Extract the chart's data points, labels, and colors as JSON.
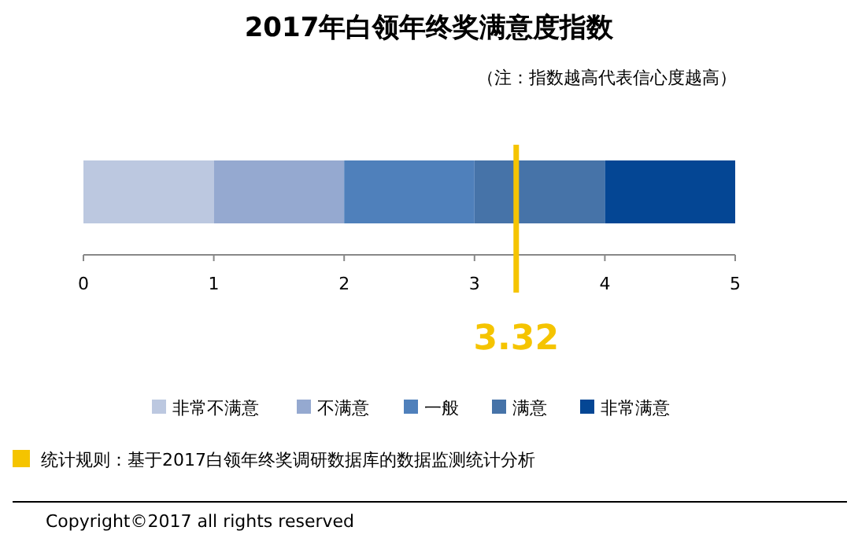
{
  "chart_data": {
    "type": "bar",
    "orientation": "horizontal",
    "stacked": true,
    "title": "2017年白领年终奖满意度指数",
    "subtitle": "（注：指数越高代表信心度越高）",
    "categories": [
      null
    ],
    "series": [
      {
        "name": "非常不满意",
        "color": "#bcc8e0",
        "values": [
          1
        ]
      },
      {
        "name": "不满意",
        "color": "#95a9d0",
        "values": [
          1
        ]
      },
      {
        "name": "一般",
        "color": "#4f80bb",
        "values": [
          1
        ]
      },
      {
        "name": "满意",
        "color": "#4673a8",
        "values": [
          1
        ]
      },
      {
        "name": "非常满意",
        "color": "#044694",
        "values": [
          1
        ]
      }
    ],
    "xlim": [
      0,
      5
    ],
    "xticks": [
      0,
      1,
      2,
      3,
      4,
      5
    ],
    "grid": false,
    "legend": "bottom",
    "ref_lines": [
      {
        "axis": "x",
        "value": 3.32,
        "label": "3.32",
        "color": "#f5c400"
      }
    ],
    "annotations": [
      "统计规则：基于2017白领年终奖调研数据库的数据监测统计分析",
      "Copyright©2017 all rights reserved"
    ]
  }
}
